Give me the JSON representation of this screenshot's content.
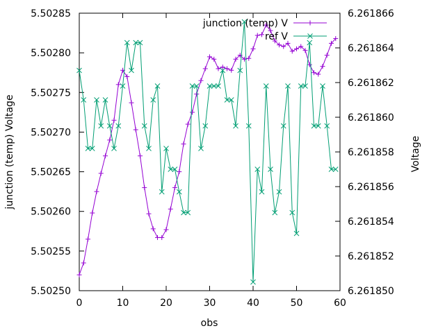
{
  "chart_data": {
    "type": "line",
    "xlabel": "obs",
    "ylabel": "junction (temp) Voltage",
    "y2label": "Voltage",
    "xlim": [
      0,
      60
    ],
    "ylim": [
      5.5025,
      5.50285
    ],
    "y2lim": [
      6.26185,
      6.261866
    ],
    "xticks": [
      "0",
      "10",
      "20",
      "30",
      "40",
      "50",
      "60"
    ],
    "yticks": [
      "5.50250",
      "5.50255",
      "5.50260",
      "5.50265",
      "5.50270",
      "5.50275",
      "5.50280",
      "5.50285"
    ],
    "y2ticks": [
      "6.261850",
      "6.261852",
      "6.261854",
      "6.261856",
      "6.261858",
      "6.261860",
      "6.261862",
      "6.261864",
      "6.261866"
    ],
    "legend_position": "top-right",
    "grid": false,
    "series": [
      {
        "name": "junction (temp) V",
        "axis": "left",
        "color": "#9400d3",
        "marker": "plus",
        "x": [
          0,
          1,
          2,
          3,
          4,
          5,
          6,
          7,
          8,
          9,
          10,
          11,
          12,
          13,
          14,
          15,
          16,
          17,
          18,
          19,
          20,
          21,
          22,
          23,
          24,
          25,
          26,
          27,
          28,
          29,
          30,
          31,
          32,
          33,
          34,
          35,
          36,
          37,
          38,
          39,
          40,
          41,
          42,
          43,
          44,
          45,
          46,
          47,
          48,
          49,
          50,
          51,
          52,
          53,
          54,
          55,
          56,
          57,
          58,
          59
        ],
        "values": [
          5.50252,
          5.502535,
          5.502565,
          5.502598,
          5.502625,
          5.502648,
          5.50267,
          5.50269,
          5.502715,
          5.50276,
          5.502778,
          5.50277,
          5.502737,
          5.502703,
          5.50267,
          5.50263,
          5.502597,
          5.502578,
          5.502567,
          5.502567,
          5.502577,
          5.502603,
          5.50263,
          5.50265,
          5.502685,
          5.50271,
          5.502725,
          5.502748,
          5.502765,
          5.50278,
          5.502795,
          5.502792,
          5.50278,
          5.502782,
          5.50278,
          5.502778,
          5.502792,
          5.502797,
          5.502792,
          5.502793,
          5.502805,
          5.502822,
          5.502823,
          5.502835,
          5.502828,
          5.502815,
          5.50281,
          5.502808,
          5.502812,
          5.502802,
          5.502805,
          5.502808,
          5.502803,
          5.502785,
          5.502775,
          5.502773,
          5.502783,
          5.502797,
          5.502812,
          5.502818
        ]
      },
      {
        "name": "ref V",
        "axis": "right",
        "color": "#009e73",
        "marker": "cross",
        "x": [
          0,
          1,
          2,
          3,
          4,
          5,
          6,
          7,
          8,
          9,
          10,
          11,
          12,
          13,
          14,
          15,
          16,
          17,
          18,
          19,
          20,
          21,
          22,
          23,
          24,
          25,
          26,
          27,
          28,
          29,
          30,
          31,
          32,
          33,
          34,
          35,
          36,
          37,
          38,
          39,
          40,
          41,
          42,
          43,
          44,
          45,
          46,
          47,
          48,
          49,
          50,
          51,
          52,
          53,
          54,
          55,
          56,
          57,
          58,
          59
        ],
        "values": [
          6.2618627,
          6.261861,
          6.2618582,
          6.2618582,
          6.261861,
          6.2618595,
          6.261861,
          6.2618595,
          6.2618582,
          6.2618595,
          6.2618618,
          6.2618643,
          6.2618627,
          6.2618643,
          6.2618643,
          6.2618595,
          6.2618582,
          6.261861,
          6.2618618,
          6.2618557,
          6.2618582,
          6.261857,
          6.261857,
          6.2618557,
          6.2618545,
          6.2618545,
          6.2618618,
          6.2618618,
          6.2618582,
          6.2618595,
          6.2618618,
          6.2618618,
          6.2618618,
          6.2618627,
          6.261861,
          6.261861,
          6.2618595,
          6.2618627,
          6.2618655,
          6.2618595,
          6.2618505,
          6.261857,
          6.2618557,
          6.2618618,
          6.261857,
          6.2618545,
          6.2618557,
          6.2618595,
          6.2618618,
          6.2618545,
          6.2618533,
          6.2618618,
          6.2618618,
          6.2618643,
          6.2618595,
          6.2618595,
          6.2618618,
          6.2618595,
          6.261857,
          6.261857
        ]
      }
    ]
  }
}
